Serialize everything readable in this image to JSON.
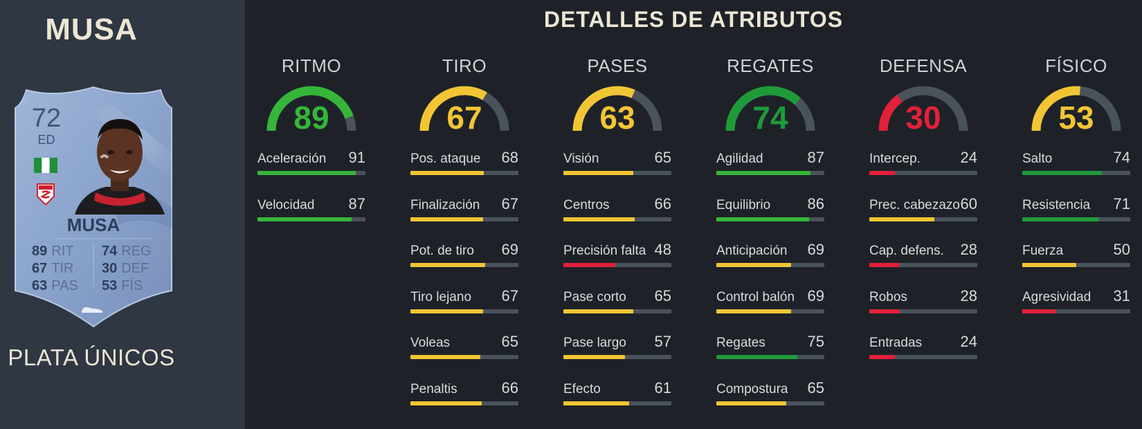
{
  "player": {
    "name": "MUSA",
    "card_type": "PLATA ÚNICOS",
    "card": {
      "rating": "72",
      "position": "ED",
      "name": "MUSA",
      "stats": [
        {
          "value": "89",
          "label": "RIT"
        },
        {
          "value": "74",
          "label": "REG"
        },
        {
          "value": "67",
          "label": "TIR"
        },
        {
          "value": "30",
          "label": "DEF"
        },
        {
          "value": "63",
          "label": "PAS"
        },
        {
          "value": "53",
          "label": "FÍS"
        }
      ],
      "flag_icon": "nigeria-flag-icon",
      "crest_icon": "sivasspor-crest-icon",
      "boot_icon": "boot-icon"
    }
  },
  "title": "DETALLES DE ATRIBUTOS",
  "colors": {
    "green": "#35b63a",
    "dark_green": "#1f9a3b",
    "yellow": "#f2c534",
    "red": "#e3203a",
    "track": "#4a525c"
  },
  "categories": [
    {
      "name": "RITMO",
      "value": "89",
      "score": 89,
      "color": "#35b63a",
      "attributes": [
        {
          "label": "Aceleración",
          "value": "91",
          "score": 91
        },
        {
          "label": "Velocidad",
          "value": "87",
          "score": 87
        }
      ]
    },
    {
      "name": "TIRO",
      "value": "67",
      "score": 67,
      "color": "#f2c534",
      "attributes": [
        {
          "label": "Pos. ataque",
          "value": "68",
          "score": 68
        },
        {
          "label": "Finalización",
          "value": "67",
          "score": 67
        },
        {
          "label": "Pot. de tiro",
          "value": "69",
          "score": 69
        },
        {
          "label": "Tiro lejano",
          "value": "67",
          "score": 67
        },
        {
          "label": "Voleas",
          "value": "65",
          "score": 65
        },
        {
          "label": "Penaltis",
          "value": "66",
          "score": 66
        }
      ]
    },
    {
      "name": "PASES",
      "value": "63",
      "score": 63,
      "color": "#f2c534",
      "attributes": [
        {
          "label": "Visión",
          "value": "65",
          "score": 65
        },
        {
          "label": "Centros",
          "value": "66",
          "score": 66
        },
        {
          "label": "Precisión falta",
          "value": "48",
          "score": 48
        },
        {
          "label": "Pase corto",
          "value": "65",
          "score": 65
        },
        {
          "label": "Pase largo",
          "value": "57",
          "score": 57
        },
        {
          "label": "Efecto",
          "value": "61",
          "score": 61
        }
      ]
    },
    {
      "name": "REGATES",
      "value": "74",
      "score": 74,
      "color": "#1f9a3b",
      "attributes": [
        {
          "label": "Agilidad",
          "value": "87",
          "score": 87
        },
        {
          "label": "Equilibrio",
          "value": "86",
          "score": 86
        },
        {
          "label": "Anticipación",
          "value": "69",
          "score": 69
        },
        {
          "label": "Control balón",
          "value": "69",
          "score": 69
        },
        {
          "label": "Regates",
          "value": "75",
          "score": 75
        },
        {
          "label": "Compostura",
          "value": "65",
          "score": 65
        }
      ]
    },
    {
      "name": "DEFENSA",
      "value": "30",
      "score": 30,
      "color": "#e3203a",
      "attributes": [
        {
          "label": "Intercep.",
          "value": "24",
          "score": 24
        },
        {
          "label": "Prec. cabezazo",
          "value": "60",
          "score": 60
        },
        {
          "label": "Cap. defens.",
          "value": "28",
          "score": 28
        },
        {
          "label": "Robos",
          "value": "28",
          "score": 28
        },
        {
          "label": "Entradas",
          "value": "24",
          "score": 24
        }
      ]
    },
    {
      "name": "FÍSICO",
      "value": "53",
      "score": 53,
      "color": "#f2c534",
      "attributes": [
        {
          "label": "Salto",
          "value": "74",
          "score": 74
        },
        {
          "label": "Resistencia",
          "value": "71",
          "score": 71
        },
        {
          "label": "Fuerza",
          "value": "50",
          "score": 50
        },
        {
          "label": "Agresividad",
          "value": "31",
          "score": 31
        }
      ]
    }
  ]
}
